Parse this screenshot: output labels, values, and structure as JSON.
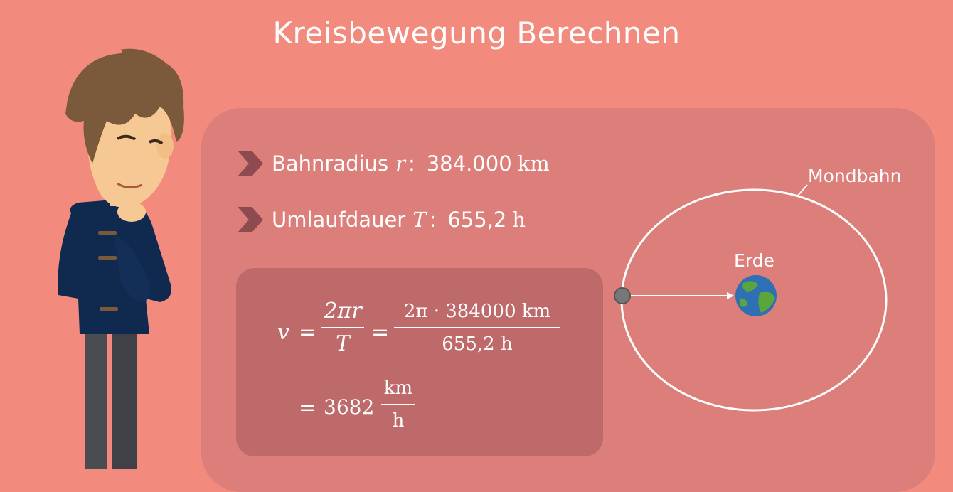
{
  "title": "Kreisbewegung Berechnen",
  "facts": [
    {
      "label": "Bahnradius",
      "symbol": "r",
      "value": "384.000",
      "unit": "km"
    },
    {
      "label": "Umlaufdauer",
      "symbol": "T",
      "value": "655,2",
      "unit": "h"
    }
  ],
  "formula": {
    "lhs": "v",
    "eq": "=",
    "frac1": {
      "num": "2πr",
      "den": "T"
    },
    "frac2": {
      "num": "2π · 384000 km",
      "den": "655,2 h"
    },
    "result_value": "3682",
    "result_unit": {
      "num": "km",
      "den": "h"
    }
  },
  "diagram": {
    "orbit_label": "Mondbahn",
    "earth_label": "Erde"
  },
  "colors": {
    "background": "#f28a7e",
    "chevron": "#8e4b4f",
    "jacket": "#0f2a4e",
    "hair": "#7a5a3a"
  }
}
